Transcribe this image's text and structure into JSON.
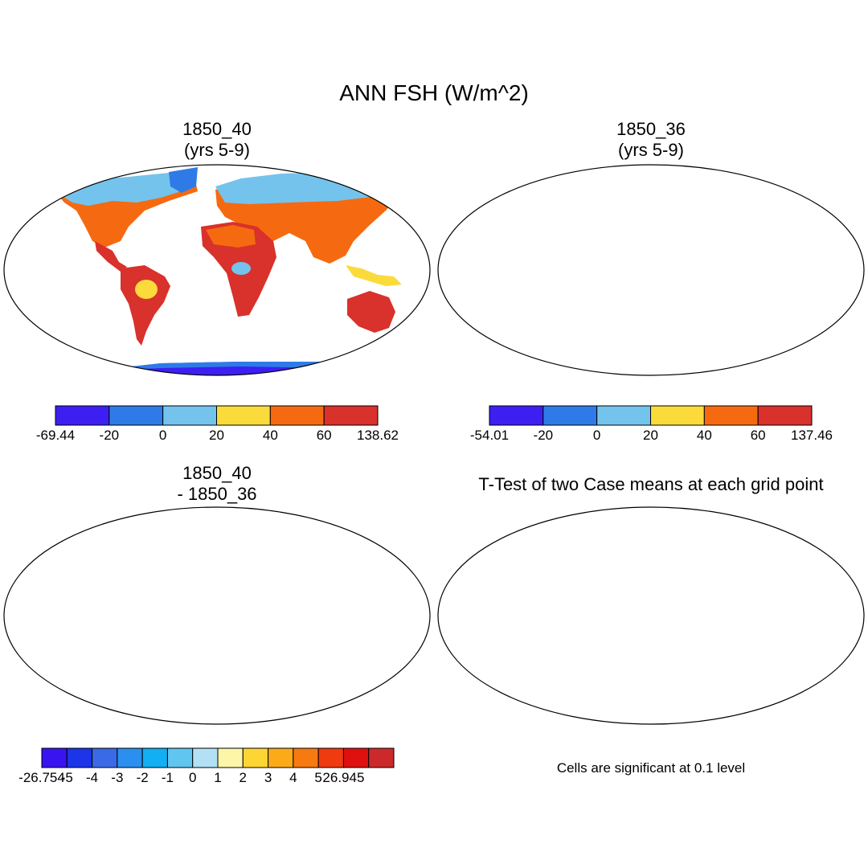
{
  "figure": {
    "title": "ANN FSH (W/m^2)"
  },
  "panels": [
    {
      "title_line1": "1850_40",
      "title_line2": "(yrs 5-9)",
      "colorbar": {
        "labels": [
          "-69.44",
          "-20",
          "0",
          "20",
          "40",
          "60",
          "138.62"
        ],
        "colors": [
          "#3d1ff2",
          "#2e7be8",
          "#74c3ec",
          "#fbda3c",
          "#f56a10",
          "#d9312b"
        ]
      }
    },
    {
      "title_line1": "1850_36",
      "title_line2": "(yrs 5-9)",
      "colorbar": {
        "labels": [
          "-54.01",
          "-20",
          "0",
          "20",
          "40",
          "60",
          "137.46"
        ],
        "colors": [
          "#3d1ff2",
          "#2e7be8",
          "#74c3ec",
          "#fbda3c",
          "#f56a10",
          "#d9312b"
        ]
      }
    },
    {
      "title_line1": "1850_40",
      "title_line2": "- 1850_36",
      "colorbar": {
        "labels": [
          "-26.754",
          "-5",
          "-4",
          "-3",
          "-2",
          "-1",
          "0",
          "1",
          "2",
          "3",
          "4",
          "5",
          "26.945"
        ],
        "colors": [
          "#3a14f0",
          "#1c35e8",
          "#3b6ae6",
          "#2b8ff0",
          "#12aff2",
          "#60c6f0",
          "#b2e0f5",
          "#fdf6a8",
          "#fdd634",
          "#fbaa18",
          "#f77a10",
          "#f03a10",
          "#e01010",
          "#cc2a2a"
        ]
      }
    },
    {
      "title": "T-Test of two Case means at each grid point",
      "note": "Cells are significant at 0.1 level",
      "significant_color": "#ff0000"
    }
  ]
}
